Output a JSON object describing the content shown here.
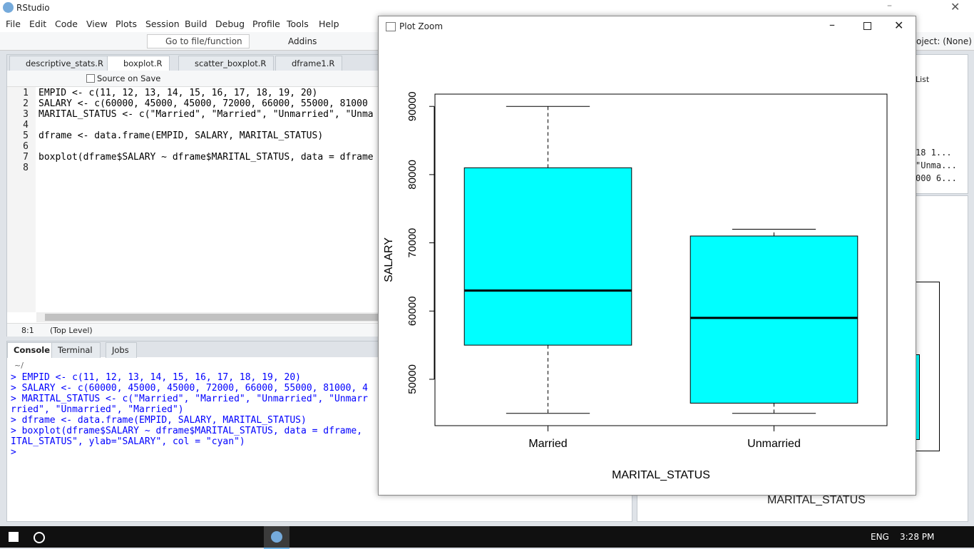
{
  "window_title": "RStudio",
  "menu": [
    "File",
    "Edit",
    "Code",
    "View",
    "Plots",
    "Session",
    "Build",
    "Debug",
    "Profile",
    "Tools",
    "Help"
  ],
  "toolbar": {
    "goto": "Go to file/function",
    "addins": "Addins",
    "project": "oject: (None)"
  },
  "editor": {
    "tabs": [
      "descriptive_stats.R",
      "boxplot.R",
      "scatter_boxplot.R",
      "dframe1.R"
    ],
    "source_on_save": "Source on Save",
    "lines": [
      {
        "number": 1,
        "code": "EMPID <- c(11, 12, 13, 14, 15, 16, 17, 18, 19, 20)"
      },
      {
        "number": 2,
        "code": "SALARY <- c(60000, 45000, 45000, 72000, 66000, 55000, 81000"
      },
      {
        "number": 3,
        "code": "MARITAL_STATUS <- c(\"Married\", \"Married\", \"Unmarried\", \"Unma"
      },
      {
        "number": 4
      },
      {
        "number": 5,
        "code": "dframe <- data.frame(EMPID, SALARY, MARITAL_STATUS)"
      },
      {
        "number": 6
      },
      {
        "number": 7,
        "code": "boxplot(dframe$SALARY ~ dframe$MARITAL_STATUS, data = dframe"
      },
      {
        "number": 8
      }
    ],
    "position": "8:1",
    "scope": "(Top Level)"
  },
  "console": {
    "tabs": [
      "Console",
      "Terminal",
      "Jobs"
    ],
    "path": "~/",
    "lines": [
      "> EMPID <- c(11, 12, 13, 14, 15, 16, 17, 18, 19, 20)",
      "> SALARY <- c(60000, 45000, 45000, 72000, 66000, 55000, 81000, 4",
      "> MARITAL_STATUS <- c(\"Married\", \"Married\", \"Unmarried\", \"Unmarr",
      "rried\", \"Unmarried\", \"Married\")",
      "> dframe <- data.frame(EMPID, SALARY, MARITAL_STATUS)",
      "> boxplot(dframe$SALARY ~ dframe$MARITAL_STATUS, data = dframe, ",
      "ITAL_STATUS\", ylab=\"SALARY\", col = \"cyan\")",
      ">"
    ]
  },
  "right_panes": {
    "list": "List",
    "env_rows": [
      "18 1...",
      "\"Unma...",
      "000 6..."
    ],
    "plot_xlabel": "MARITAL_STATUS"
  },
  "plot_window": {
    "title": "Plot Zoom"
  },
  "chart_data": {
    "type": "box",
    "x_label": "MARITAL_STATUS",
    "y_label": "SALARY",
    "categories": [
      "Married",
      "Unmarried"
    ],
    "boxes": [
      {
        "whisker_low": 45000,
        "q1": 55000,
        "median": 63000,
        "q3": 81000,
        "whisker_high": 90000
      },
      {
        "whisker_low": 45000,
        "q1": 46500,
        "median": 59000,
        "q3": 71000,
        "whisker_high": 72000
      }
    ],
    "color": "#00ffff",
    "ylim": [
      43200,
      91800
    ],
    "yticks": [
      50000,
      60000,
      70000,
      80000,
      90000
    ]
  },
  "taskbar": {
    "language": "ENG",
    "time": "3:28 PM"
  }
}
